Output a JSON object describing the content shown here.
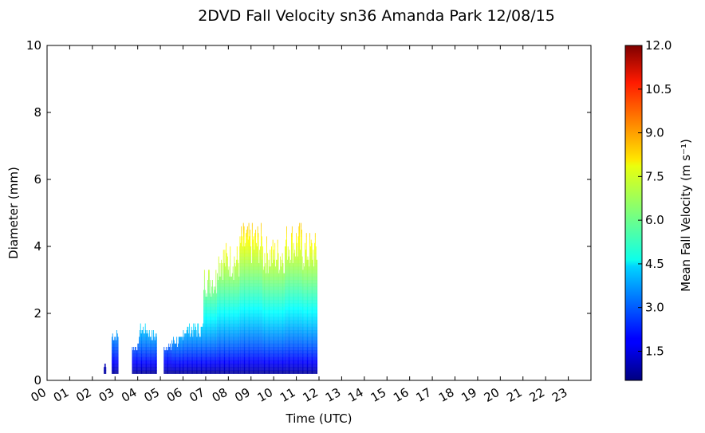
{
  "chart_data": {
    "type": "heatmap",
    "title": "2DVD Fall Velocity sn36 Amanda Park 12/08/15",
    "xlabel": "Time (UTC)",
    "ylabel": "Diameter (mm)",
    "xlim": [
      0,
      24
    ],
    "ylim": [
      0,
      10
    ],
    "x_ticks": [
      "00",
      "01",
      "02",
      "03",
      "04",
      "05",
      "06",
      "07",
      "08",
      "09",
      "10",
      "11",
      "12",
      "13",
      "14",
      "15",
      "16",
      "17",
      "18",
      "19",
      "20",
      "21",
      "22",
      "23"
    ],
    "y_ticks": [
      "0",
      "2",
      "4",
      "6",
      "8",
      "10"
    ],
    "grid": false,
    "colormap": "jet",
    "colorbar": {
      "label": "Mean Fall Velocity (m s⁻¹)",
      "range": [
        0.5,
        12.0
      ],
      "ticks": [
        "1.5",
        "3.0",
        "4.5",
        "6.0",
        "7.5",
        "9.0",
        "10.5",
        "12.0"
      ]
    },
    "cells": [
      {
        "x": [
          2.85,
          3.15
        ],
        "d_max": 1.5,
        "v": [
          0.9,
          4.0
        ]
      },
      {
        "x": [
          2.5,
          2.6
        ],
        "d_max": 0.5,
        "v": [
          0.9,
          1.2
        ]
      },
      {
        "x": [
          3.75,
          4.05
        ],
        "d_max": 1.1,
        "v": [
          0.9,
          3.3
        ]
      },
      {
        "x": [
          4.05,
          4.5
        ],
        "d_max": 1.7,
        "v": [
          0.9,
          4.6
        ]
      },
      {
        "x": [
          4.5,
          4.85
        ],
        "d_max": 1.5,
        "v": [
          0.9,
          4.3
        ]
      },
      {
        "x": [
          5.15,
          5.5
        ],
        "d_max": 1.1,
        "v": [
          0.9,
          3.3
        ]
      },
      {
        "x": [
          5.5,
          6.0
        ],
        "d_max": 1.3,
        "v": [
          0.9,
          4.0
        ]
      },
      {
        "x": [
          6.0,
          6.9
        ],
        "d_max": 1.7,
        "v": [
          0.9,
          4.6
        ]
      },
      {
        "x": [
          6.9,
          7.5
        ],
        "d_max": 3.4,
        "v": [
          0.9,
          7.4
        ]
      },
      {
        "x": [
          7.5,
          8.5
        ],
        "d_max": 4.1,
        "v": [
          0.9,
          8.0
        ]
      },
      {
        "x": [
          8.5,
          9.5
        ],
        "d_max": 4.7,
        "v": [
          0.9,
          8.4
        ]
      },
      {
        "x": [
          9.5,
          10.5
        ],
        "d_max": 4.3,
        "v": [
          0.9,
          8.2
        ]
      },
      {
        "x": [
          10.5,
          11.25
        ],
        "d_max": 4.7,
        "v": [
          0.9,
          8.4
        ]
      },
      {
        "x": [
          11.25,
          11.92
        ],
        "d_max": 4.4,
        "v": [
          0.9,
          8.2
        ]
      }
    ]
  }
}
